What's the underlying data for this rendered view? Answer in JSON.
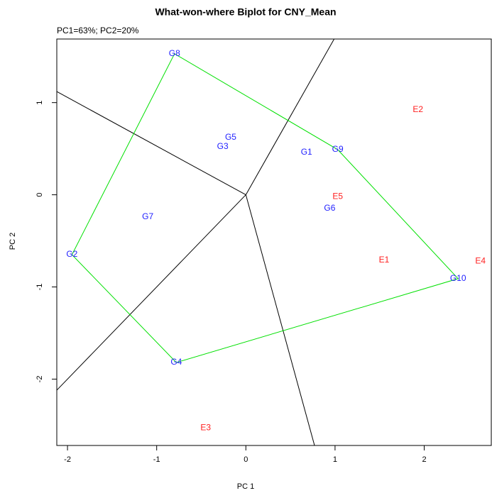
{
  "chart_data": {
    "type": "biplot",
    "title": "What-won-where Biplot for CNY_Mean",
    "subtitle": "PC1=63%; PC2=20%",
    "xlabel": "PC 1",
    "ylabel": "PC 2",
    "xlim": [
      -2.12,
      2.76
    ],
    "ylim": [
      -2.72,
      1.69
    ],
    "xticks": [
      -2,
      -1,
      0,
      1,
      2
    ],
    "yticks": [
      -2,
      -1,
      0,
      1
    ],
    "genotypes": {
      "color": "#1f1fff",
      "labels": [
        "G8",
        "G5",
        "G3",
        "G1",
        "G9",
        "G7",
        "G6",
        "G2",
        "G10",
        "G4"
      ],
      "x": [
        -0.8,
        -0.17,
        -0.26,
        0.68,
        1.03,
        -1.1,
        0.94,
        -1.95,
        2.38,
        -0.78
      ],
      "y": [
        1.53,
        0.62,
        0.52,
        0.46,
        0.49,
        -0.24,
        -0.15,
        -0.65,
        -0.91,
        -1.82
      ]
    },
    "environments": {
      "color": "#ff1f1f",
      "labels": [
        "E2",
        "E5",
        "E1",
        "E4",
        "E3"
      ],
      "x": [
        1.93,
        1.03,
        1.55,
        2.63,
        -0.45
      ],
      "y": [
        0.92,
        -0.02,
        -0.71,
        -0.72,
        -2.53
      ]
    },
    "polygon": {
      "color": "#00e000",
      "x": [
        -0.8,
        1.03,
        2.38,
        -0.78,
        -1.95
      ],
      "y": [
        1.53,
        0.49,
        -0.91,
        -1.82,
        -0.65
      ]
    },
    "rays": {
      "color": "#000000",
      "lines": [
        {
          "x": [
            0,
            0.99
          ],
          "y": [
            0,
            1.69
          ]
        },
        {
          "x": [
            0,
            -2.12
          ],
          "y": [
            0,
            1.12
          ]
        },
        {
          "x": [
            0,
            -2.12
          ],
          "y": [
            0,
            -2.12
          ]
        },
        {
          "x": [
            0,
            0.77
          ],
          "y": [
            0,
            -2.72
          ]
        }
      ]
    }
  }
}
